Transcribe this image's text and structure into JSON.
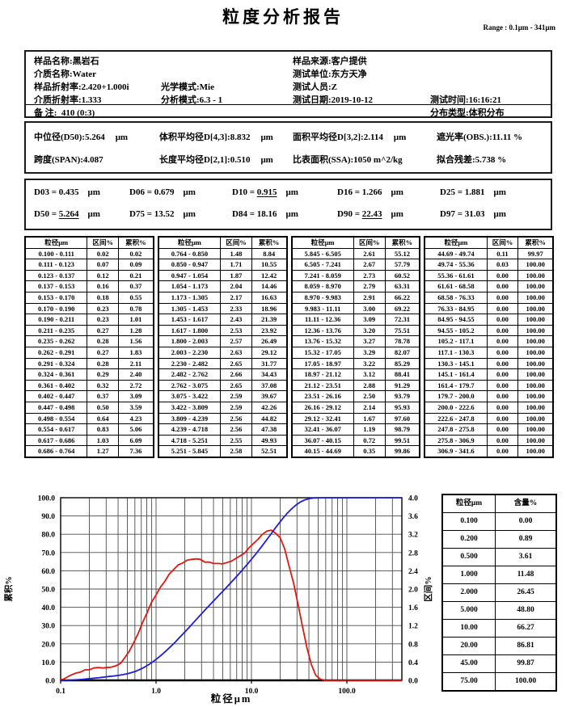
{
  "title": "粒度分析报告",
  "range_label": "Range : 0.1μm - 341μm",
  "info": {
    "sample_name": {
      "label": "样品名称:",
      "value": "黑岩石"
    },
    "sample_source": {
      "label": "样品来源:",
      "value": "客户提供"
    },
    "medium_name": {
      "label": "介质名称:",
      "value": "Water"
    },
    "test_unit": {
      "label": "测试单位:",
      "value": "东方天净"
    },
    "sample_ri": {
      "label": "样品折射率:",
      "value": "2.420+1.000i"
    },
    "optical_mode": {
      "label": "光学模式:",
      "value": "Mie"
    },
    "tester": {
      "label": "测试人员:",
      "value": "Z"
    },
    "medium_ri": {
      "label": "介质折射率:",
      "value": "1.333"
    },
    "analysis_mode": {
      "label": "分析模式:",
      "value": "6.3 - 1"
    },
    "test_date": {
      "label": "测试日期:",
      "value": "2019-10-12"
    },
    "test_time": {
      "label": "测试时间:",
      "value": "16:16:21"
    },
    "remark": {
      "label": "备 注:",
      "value": "410  (0:3)"
    },
    "dist_type": {
      "label": "分布类型:",
      "value": "体积分布"
    }
  },
  "summary": {
    "d50": {
      "label": "中位径(D50):",
      "value": "5.264",
      "unit": "μm"
    },
    "d43": {
      "label": "体积平均径D[4,3]:",
      "value": "8.832",
      "unit": "μm"
    },
    "d32": {
      "label": "面积平均径D[3,2]:",
      "value": "2.114",
      "unit": "μm"
    },
    "obs": {
      "label": "遮光率(OBS.):",
      "value": "11.11 %",
      "unit": ""
    },
    "span": {
      "label": "跨度(SPAN):",
      "value": "4.087",
      "unit": ""
    },
    "d21": {
      "label": "长度平均径D[2,1]:",
      "value": "0.510",
      "unit": "μm"
    },
    "ssa": {
      "label": "比表面积(SSA):",
      "value": "1050 m^2/kg",
      "unit": ""
    },
    "residual": {
      "label": "拟合残差:",
      "value": "5.738 %",
      "unit": ""
    }
  },
  "percentiles": {
    "items": [
      {
        "name": "D03 =",
        "value": "0.435",
        "unit": "μm",
        "underline": false
      },
      {
        "name": "D06 =",
        "value": "0.679",
        "unit": "μm",
        "underline": false
      },
      {
        "name": "D10 =",
        "value": "0.915",
        "unit": "μm",
        "underline": true
      },
      {
        "name": "D16 =",
        "value": "1.266",
        "unit": "μm",
        "underline": false
      },
      {
        "name": "D25 =",
        "value": "1.881",
        "unit": "μm",
        "underline": false
      },
      {
        "name": "D50 =",
        "value": "5.264",
        "unit": "μm",
        "underline": true
      },
      {
        "name": "D75 =",
        "value": "13.52",
        "unit": "μm",
        "underline": false
      },
      {
        "name": "D84 =",
        "value": "18.16",
        "unit": "μm",
        "underline": false
      },
      {
        "name": "D90 =",
        "value": "22.43",
        "unit": "μm",
        "underline": true
      },
      {
        "name": "D97 =",
        "value": "31.03",
        "unit": "μm",
        "underline": false
      }
    ]
  },
  "distribution_table": {
    "headers": [
      "粒径μm",
      "区间%",
      "累积%"
    ],
    "groups": [
      [
        [
          "0.100 - 0.111",
          "0.02",
          "0.02"
        ],
        [
          "0.111 - 0.123",
          "0.07",
          "0.09"
        ],
        [
          "0.123 - 0.137",
          "0.12",
          "0.21"
        ],
        [
          "0.137 - 0.153",
          "0.16",
          "0.37"
        ],
        [
          "0.153 - 0.170",
          "0.18",
          "0.55"
        ],
        [
          "0.170 - 0.190",
          "0.23",
          "0.78"
        ],
        [
          "0.190 - 0.211",
          "0.23",
          "1.01"
        ],
        [
          "0.211 - 0.235",
          "0.27",
          "1.28"
        ],
        [
          "0.235 - 0.262",
          "0.28",
          "1.56"
        ],
        [
          "0.262 - 0.291",
          "0.27",
          "1.83"
        ],
        [
          "0.291 - 0.324",
          "0.28",
          "2.11"
        ],
        [
          "0.324 - 0.361",
          "0.29",
          "2.40"
        ],
        [
          "0.361 - 0.402",
          "0.32",
          "2.72"
        ],
        [
          "0.402 - 0.447",
          "0.37",
          "3.09"
        ],
        [
          "0.447 - 0.498",
          "0.50",
          "3.59"
        ],
        [
          "0.498 - 0.554",
          "0.64",
          "4.23"
        ],
        [
          "0.554 - 0.617",
          "0.83",
          "5.06"
        ],
        [
          "0.617 - 0.686",
          "1.03",
          "6.09"
        ],
        [
          "0.686 - 0.764",
          "1.27",
          "7.36"
        ]
      ],
      [
        [
          "0.764 - 0.850",
          "1.48",
          "8.84"
        ],
        [
          "0.850 - 0.947",
          "1.71",
          "10.55"
        ],
        [
          "0.947 - 1.054",
          "1.87",
          "12.42"
        ],
        [
          "1.054 - 1.173",
          "2.04",
          "14.46"
        ],
        [
          "1.173 - 1.305",
          "2.17",
          "16.63"
        ],
        [
          "1.305 - 1.453",
          "2.33",
          "18.96"
        ],
        [
          "1.453 - 1.617",
          "2.43",
          "21.39"
        ],
        [
          "1.617 - 1.800",
          "2.53",
          "23.92"
        ],
        [
          "1.800 - 2.003",
          "2.57",
          "26.49"
        ],
        [
          "2.003 - 2.230",
          "2.63",
          "29.12"
        ],
        [
          "2.230 - 2.482",
          "2.65",
          "31.77"
        ],
        [
          "2.482 - 2.762",
          "2.66",
          "34.43"
        ],
        [
          "2.762 - 3.075",
          "2.65",
          "37.08"
        ],
        [
          "3.075 - 3.422",
          "2.59",
          "39.67"
        ],
        [
          "3.422 - 3.809",
          "2.59",
          "42.26"
        ],
        [
          "3.809 - 4.239",
          "2.56",
          "44.82"
        ],
        [
          "4.239 - 4.718",
          "2.56",
          "47.38"
        ],
        [
          "4.718 - 5.251",
          "2.55",
          "49.93"
        ],
        [
          "5.251 - 5.845",
          "2.58",
          "52.51"
        ]
      ],
      [
        [
          "5.845 - 6.505",
          "2.61",
          "55.12"
        ],
        [
          "6.505 - 7.241",
          "2.67",
          "57.79"
        ],
        [
          "7.241 - 8.059",
          "2.73",
          "60.52"
        ],
        [
          "8.059 - 8.970",
          "2.79",
          "63.31"
        ],
        [
          "8.970 - 9.983",
          "2.91",
          "66.22"
        ],
        [
          "9.983 - 11.11",
          "3.00",
          "69.22"
        ],
        [
          "11.11 - 12.36",
          "3.09",
          "72.31"
        ],
        [
          "12.36 - 13.76",
          "3.20",
          "75.51"
        ],
        [
          "13.76 - 15.32",
          "3.27",
          "78.78"
        ],
        [
          "15.32 - 17.05",
          "3.29",
          "82.07"
        ],
        [
          "17.05 - 18.97",
          "3.22",
          "85.29"
        ],
        [
          "18.97 - 21.12",
          "3.12",
          "88.41"
        ],
        [
          "21.12 - 23.51",
          "2.88",
          "91.29"
        ],
        [
          "23.51 - 26.16",
          "2.50",
          "93.79"
        ],
        [
          "26.16 - 29.12",
          "2.14",
          "95.93"
        ],
        [
          "29.12 - 32.41",
          "1.67",
          "97.60"
        ],
        [
          "32.41 - 36.07",
          "1.19",
          "98.79"
        ],
        [
          "36.07 - 40.15",
          "0.72",
          "99.51"
        ],
        [
          "40.15 - 44.69",
          "0.35",
          "99.86"
        ]
      ],
      [
        [
          "44.69 - 49.74",
          "0.11",
          "99.97"
        ],
        [
          "49.74 - 55.36",
          "0.03",
          "100.00"
        ],
        [
          "55.36 - 61.61",
          "0.00",
          "100.00"
        ],
        [
          "61.61 - 68.58",
          "0.00",
          "100.00"
        ],
        [
          "68.58 - 76.33",
          "0.00",
          "100.00"
        ],
        [
          "76.33 - 84.95",
          "0.00",
          "100.00"
        ],
        [
          "84.95 - 94.55",
          "0.00",
          "100.00"
        ],
        [
          "94.55 - 105.2",
          "0.00",
          "100.00"
        ],
        [
          "105.2 - 117.1",
          "0.00",
          "100.00"
        ],
        [
          "117.1 - 130.3",
          "0.00",
          "100.00"
        ],
        [
          "130.3 - 145.1",
          "0.00",
          "100.00"
        ],
        [
          "145.1 - 161.4",
          "0.00",
          "100.00"
        ],
        [
          "161.4 - 179.7",
          "0.00",
          "100.00"
        ],
        [
          "179.7 - 200.0",
          "0.00",
          "100.00"
        ],
        [
          "200.0 - 222.6",
          "0.00",
          "100.00"
        ],
        [
          "222.6 - 247.8",
          "0.00",
          "100.00"
        ],
        [
          "247.8 - 275.8",
          "0.00",
          "100.00"
        ],
        [
          "275.8 - 306.9",
          "0.00",
          "100.00"
        ],
        [
          "306.9 - 341.6",
          "0.00",
          "100.00"
        ]
      ]
    ]
  },
  "percent_table": {
    "headers": [
      "粒径μm",
      "含量%"
    ],
    "rows": [
      [
        "0.100",
        "0.00"
      ],
      [
        "0.200",
        "0.89"
      ],
      [
        "0.500",
        "3.61"
      ],
      [
        "1.000",
        "11.48"
      ],
      [
        "2.000",
        "26.45"
      ],
      [
        "5.000",
        "48.80"
      ],
      [
        "10.00",
        "66.27"
      ],
      [
        "20.00",
        "86.81"
      ],
      [
        "45.00",
        "99.87"
      ],
      [
        "75.00",
        "100.00"
      ]
    ]
  },
  "chart_data": {
    "type": "line",
    "x_scale": "log",
    "xlabel": "粒径μm",
    "xlim": [
      0.1,
      377
    ],
    "x_ticks": [
      "0.1",
      "1.0",
      "10.0",
      "100.0"
    ],
    "x_tick_values": [
      0.1,
      1,
      10,
      100
    ],
    "left_axis": {
      "label": "累积%",
      "lim": [
        0,
        100
      ],
      "tick_step": 10
    },
    "right_axis": {
      "label": "区间%",
      "lim": [
        0,
        4
      ],
      "tick_step": 0.4
    },
    "grid": true,
    "series": [
      {
        "name": "累积%",
        "axis": "left",
        "color": "#1c1cdd",
        "description": "cumulative percent vs bin upper edge, from distribution_table",
        "key_points": [
          [
            0.1,
            0
          ],
          [
            0.2,
            0.89
          ],
          [
            0.5,
            3.61
          ],
          [
            1,
            11.48
          ],
          [
            2,
            26.45
          ],
          [
            5,
            48.8
          ],
          [
            10,
            66.27
          ],
          [
            20,
            86.81
          ],
          [
            45,
            99.87
          ],
          [
            75,
            100
          ]
        ]
      },
      {
        "name": "区间%",
        "axis": "right",
        "color": "#e01810",
        "description": "interval percent vs bin geometric midpoint, from distribution_table",
        "key_points": [
          [
            0.25,
            0.27
          ],
          [
            1.0,
            1.87
          ],
          [
            2.6,
            2.66
          ],
          [
            5.0,
            2.55
          ],
          [
            16.2,
            3.29
          ],
          [
            55,
            0.03
          ],
          [
            341,
            0
          ]
        ]
      }
    ]
  }
}
